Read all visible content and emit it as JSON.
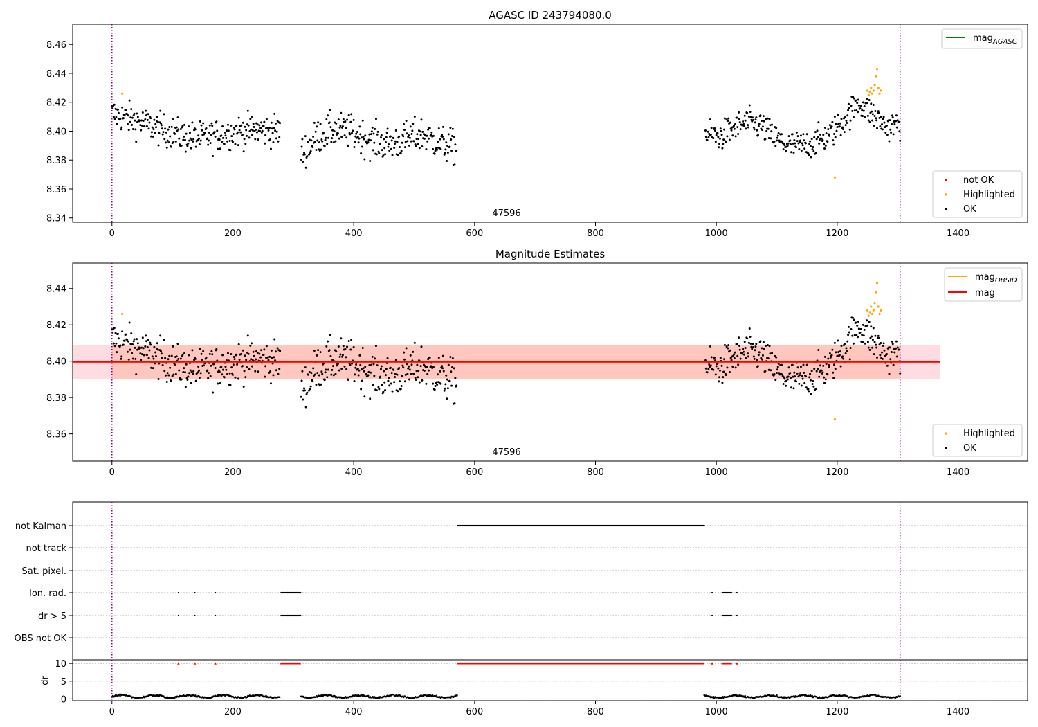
{
  "chart_data": [
    {
      "type": "scatter",
      "title": "AGASC ID 243794080.0",
      "xlim": [
        -65,
        1515
      ],
      "ylim": [
        8.337,
        8.474
      ],
      "xticks": [
        0,
        200,
        400,
        600,
        800,
        1000,
        1200,
        1400
      ],
      "yticks": [
        8.34,
        8.36,
        8.38,
        8.4,
        8.42,
        8.44,
        8.46
      ],
      "vlines": [
        0,
        1304
      ],
      "obsid_label": {
        "text": "47596",
        "x": 652
      },
      "legend_line": [
        {
          "name": "mag_AGASC",
          "base": "mag",
          "sub": "AGASC",
          "color": "#008000"
        }
      ],
      "legend_points": [
        {
          "name": "not OK",
          "color": "#ff0000"
        },
        {
          "name": "Highlighted",
          "color": "#ffa500"
        },
        {
          "name": "OK",
          "color": "#000000"
        }
      ],
      "series_segments": [
        {
          "x0": 0,
          "x1": 278,
          "means": [
            8.412,
            8.408,
            8.403,
            8.398,
            8.395,
            8.397,
            8.4,
            8.401,
            8.4
          ],
          "noise": 0.0055
        },
        {
          "x0": 313,
          "x1": 570,
          "means": [
            8.384,
            8.397,
            8.401,
            8.399,
            8.394,
            8.391,
            8.394,
            8.398,
            8.392,
            8.388
          ],
          "noise": 0.006
        },
        {
          "x0": 982,
          "x1": 1304,
          "means": [
            8.398,
            8.396,
            8.402,
            8.406,
            8.404,
            8.395,
            8.39,
            8.39,
            8.393,
            8.398,
            8.408,
            8.42,
            8.412,
            8.403,
            8.405
          ],
          "noise": 0.005
        }
      ],
      "highlighted_points": [
        [
          17,
          8.426
        ],
        [
          1196,
          8.368
        ],
        [
          1250,
          8.428
        ],
        [
          1252,
          8.425
        ],
        [
          1254,
          8.427
        ],
        [
          1256,
          8.43
        ],
        [
          1258,
          8.426
        ],
        [
          1260,
          8.428
        ],
        [
          1262,
          8.432
        ],
        [
          1264,
          8.438
        ],
        [
          1266,
          8.443
        ],
        [
          1268,
          8.43
        ],
        [
          1270,
          8.426
        ],
        [
          1272,
          8.428
        ]
      ]
    },
    {
      "type": "scatter",
      "title": "Magnitude Estimates",
      "xlim": [
        -65,
        1515
      ],
      "ylim": [
        8.345,
        8.454
      ],
      "xticks": [
        0,
        200,
        400,
        600,
        800,
        1000,
        1200,
        1400
      ],
      "yticks": [
        8.36,
        8.38,
        8.4,
        8.42,
        8.44
      ],
      "vlines": [
        0,
        1304
      ],
      "obsid_label": {
        "text": "47596",
        "x": 652
      },
      "mag_line": {
        "value": 8.3996,
        "color": "#ff0000"
      },
      "mag_band": {
        "lo": 8.39,
        "hi": 8.409,
        "x0": -65,
        "x1": 1370,
        "color": "#ffc0cb"
      },
      "obsid_band": {
        "lo": 8.39,
        "hi": 8.409,
        "x0": 0,
        "x1": 1304,
        "color": "#ffa07a"
      },
      "legend_line": [
        {
          "name": "mag_OBSID",
          "base": "mag",
          "sub": "OBSID",
          "color": "#ffa500"
        },
        {
          "name": "mag",
          "base": "mag",
          "sub": "",
          "color": "#ff0000"
        }
      ],
      "legend_points": [
        {
          "name": "Highlighted",
          "color": "#ffa500"
        },
        {
          "name": "OK",
          "color": "#000000"
        }
      ]
    },
    {
      "type": "scatter",
      "xlim": [
        -65,
        1515
      ],
      "xticks": [
        0,
        200,
        400,
        600,
        800,
        1000,
        1200,
        1400
      ],
      "vlines": [
        0,
        1304
      ],
      "flag_labels": [
        "not Kalman",
        "not track",
        "Sat. pixel.",
        "Ion. rad.",
        "dr > 5",
        "OBS not OK"
      ],
      "flags": {
        "not Kalman": {
          "ranges": [
            [
              572,
              980
            ]
          ],
          "points": []
        },
        "not track": {
          "ranges": [],
          "points": []
        },
        "Sat. pixel.": {
          "ranges": [],
          "points": []
        },
        "Ion. rad.": {
          "ranges": [
            [
              280,
              312
            ],
            [
              1010,
              1025
            ]
          ],
          "points": [
            110,
            137,
            171,
            993,
            1034
          ]
        },
        "dr > 5": {
          "ranges": [
            [
              280,
              312
            ],
            [
              1010,
              1025
            ]
          ],
          "points": [
            110,
            137,
            171,
            993,
            1034
          ]
        },
        "OBS not OK": {
          "ranges": [],
          "points": []
        }
      },
      "dr_ylabel": "dr",
      "dr_ylim": [
        -0.5,
        11
      ],
      "dr_yticks": [
        0,
        5,
        10
      ],
      "dr_segments": [
        [
          0,
          278
        ],
        [
          313,
          572
        ],
        [
          980,
          1304
        ]
      ],
      "dr_red_ranges": [
        [
          280,
          312
        ],
        [
          572,
          980
        ],
        [
          1010,
          1025
        ]
      ],
      "dr_red_points": [
        110,
        137,
        171,
        993,
        1034
      ]
    }
  ]
}
